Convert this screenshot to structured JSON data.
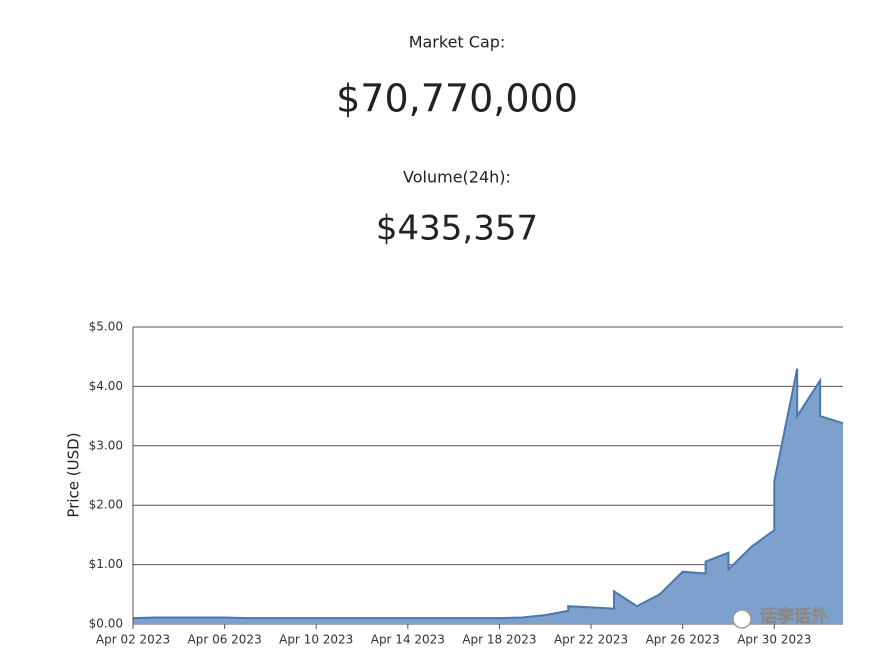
{
  "stats": {
    "market_cap_label": "Market Cap:",
    "market_cap": "$70,770,000",
    "volume_label": "Volume(24h):",
    "volume": "$435,357"
  },
  "watermark": "话李话外",
  "chart_data": {
    "type": "area",
    "y_label": "Price (USD)",
    "x": [
      "2023-04-02",
      "2023-04-03",
      "2023-04-04",
      "2023-04-05",
      "2023-04-06",
      "2023-04-07",
      "2023-04-08",
      "2023-04-09",
      "2023-04-10",
      "2023-04-11",
      "2023-04-12",
      "2023-04-13",
      "2023-04-14",
      "2023-04-15",
      "2023-04-16",
      "2023-04-17",
      "2023-04-18",
      "2023-04-19",
      "2023-04-20",
      "2023-04-21",
      "2023-04-21",
      "2023-04-22",
      "2023-04-23",
      "2023-04-23",
      "2023-04-24",
      "2023-04-25",
      "2023-04-26",
      "2023-04-27",
      "2023-04-27",
      "2023-04-28",
      "2023-04-28",
      "2023-04-29",
      "2023-04-30",
      "2023-04-30",
      "2023-05-01",
      "2023-05-01",
      "2023-05-02",
      "2023-05-02",
      "2023-05-03"
    ],
    "values": [
      0.1,
      0.11,
      0.11,
      0.11,
      0.11,
      0.1,
      0.1,
      0.1,
      0.1,
      0.1,
      0.1,
      0.1,
      0.1,
      0.1,
      0.1,
      0.1,
      0.1,
      0.11,
      0.15,
      0.22,
      0.3,
      0.28,
      0.26,
      0.55,
      0.3,
      0.5,
      0.88,
      0.85,
      1.05,
      1.2,
      0.92,
      1.3,
      1.58,
      2.4,
      4.3,
      3.5,
      4.1,
      3.5,
      3.38
    ],
    "color": "#7da1cc",
    "line_color": "#4a78ad",
    "xlim": [
      "2023-04-02",
      "2023-05-03"
    ],
    "xticks": [
      {
        "value": "2023-04-02",
        "label": "Apr 02 2023"
      },
      {
        "value": "2023-04-06",
        "label": "Apr 06 2023"
      },
      {
        "value": "2023-04-10",
        "label": "Apr 10 2023"
      },
      {
        "value": "2023-04-14",
        "label": "Apr 14 2023"
      },
      {
        "value": "2023-04-18",
        "label": "Apr 18 2023"
      },
      {
        "value": "2023-04-22",
        "label": "Apr 22 2023"
      },
      {
        "value": "2023-04-26",
        "label": "Apr 26 2023"
      },
      {
        "value": "2023-04-30",
        "label": "Apr 30 2023"
      }
    ],
    "ylim": [
      0,
      5
    ],
    "yticks": [
      {
        "value": 0,
        "label": "$0.00"
      },
      {
        "value": 1,
        "label": "$1.00"
      },
      {
        "value": 2,
        "label": "$2.00"
      },
      {
        "value": 3,
        "label": "$3.00"
      },
      {
        "value": 4,
        "label": "$4.00"
      },
      {
        "value": 5,
        "label": "$5.00"
      }
    ],
    "grid": true
  }
}
